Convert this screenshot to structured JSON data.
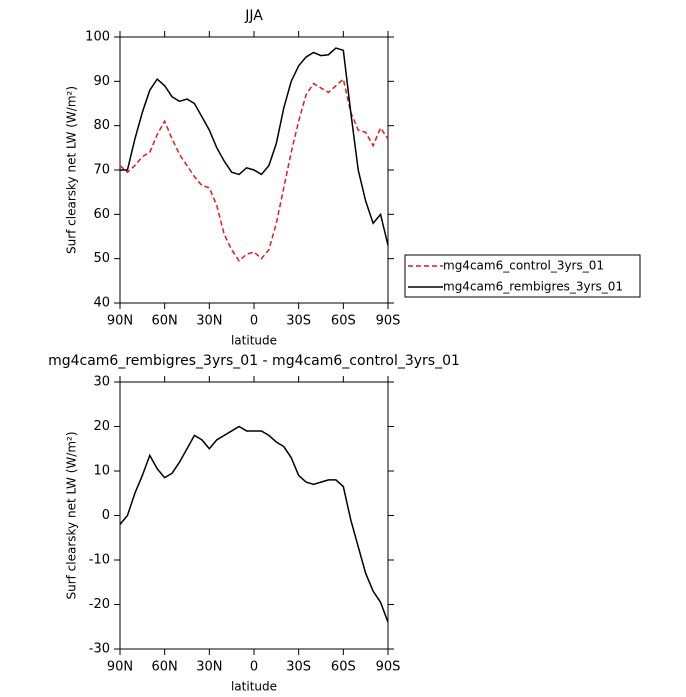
{
  "chart_data": [
    {
      "type": "line",
      "title": "JJA",
      "xlabel": "latitude",
      "ylabel": "Surf clearsky net LW (W/m²)",
      "x": [
        90,
        85,
        80,
        75,
        70,
        65,
        60,
        55,
        50,
        45,
        40,
        35,
        30,
        25,
        20,
        15,
        10,
        5,
        0,
        -5,
        -10,
        -15,
        -20,
        -25,
        -30,
        -35,
        -40,
        -45,
        -50,
        -55,
        -60,
        -65,
        -70,
        -75,
        -80,
        -85,
        -90
      ],
      "series": [
        {
          "name": "mg4cam6_control_3yrs_01",
          "color": "#e41a1c",
          "dash": true,
          "values": [
            71,
            69.5,
            71,
            73,
            74,
            78,
            81,
            77,
            73.5,
            71,
            68.5,
            66.5,
            66,
            62,
            55.5,
            52,
            49.5,
            51,
            51.5,
            50,
            52,
            58,
            66,
            74,
            81,
            87,
            89.5,
            88.5,
            87.5,
            89,
            90.5,
            83,
            79,
            78.5,
            75.5,
            79.5,
            77
          ]
        },
        {
          "name": "mg4cam6_rembigres_3yrs_01",
          "color": "#000000",
          "dash": false,
          "values": [
            70,
            70,
            77,
            83,
            88,
            90.5,
            89,
            86.5,
            85.5,
            86,
            85,
            82,
            79,
            75,
            72,
            69.5,
            69,
            70.5,
            70,
            69,
            71,
            76,
            84,
            90,
            93.5,
            95.5,
            96.5,
            95.8,
            96,
            97.5,
            97,
            83,
            70,
            63,
            58,
            60,
            53
          ]
        }
      ],
      "xlim": [
        90,
        -90
      ],
      "xticks": [
        {
          "value": 90,
          "label": "90N"
        },
        {
          "value": 60,
          "label": "60N"
        },
        {
          "value": 30,
          "label": "30N"
        },
        0,
        {
          "value": -30,
          "label": "30S"
        },
        {
          "value": -60,
          "label": "60S"
        },
        {
          "value": -90,
          "label": "90S"
        }
      ],
      "ylim": [
        40,
        100
      ],
      "yticks": [
        40,
        50,
        60,
        70,
        80,
        90,
        100
      ],
      "legend": "right"
    },
    {
      "type": "line",
      "title": "mg4cam6_rembigres_3yrs_01 - mg4cam6_control_3yrs_01",
      "xlabel": "latitude",
      "ylabel": "Surf clearsky net LW (W/m²)",
      "x": [
        90,
        85,
        80,
        75,
        70,
        65,
        60,
        55,
        50,
        45,
        40,
        35,
        30,
        25,
        20,
        15,
        10,
        5,
        0,
        -5,
        -10,
        -15,
        -20,
        -25,
        -30,
        -35,
        -40,
        -45,
        -50,
        -55,
        -60,
        -65,
        -70,
        -75,
        -80,
        -85,
        -90
      ],
      "series": [
        {
          "color": "#000000",
          "dash": false,
          "values": [
            -2,
            0,
            5,
            9,
            13.5,
            10.5,
            8.5,
            9.5,
            12,
            15,
            18,
            17,
            15,
            17,
            18,
            19,
            20,
            19,
            19,
            19,
            18,
            16.5,
            15.5,
            13,
            9,
            7.5,
            7,
            7.5,
            8,
            8,
            6.5,
            -1,
            -7,
            -13,
            -17,
            -19.5,
            -24
          ]
        }
      ],
      "xlim": [
        90,
        -90
      ],
      "xticks": [
        {
          "value": 90,
          "label": "90N"
        },
        {
          "value": 60,
          "label": "60N"
        },
        {
          "value": 30,
          "label": "30N"
        },
        0,
        {
          "value": -30,
          "label": "30S"
        },
        {
          "value": -60,
          "label": "60S"
        },
        {
          "value": -90,
          "label": "90S"
        }
      ],
      "ylim": [
        -30,
        30
      ],
      "yticks": [
        -30,
        -20,
        -10,
        0,
        10,
        20,
        30
      ]
    }
  ]
}
